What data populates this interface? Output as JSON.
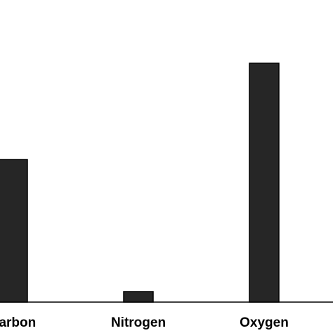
{
  "chart_data": {
    "type": "bar",
    "categories": [
      "Carbon",
      "Nitrogen",
      "Oxygen"
    ],
    "values": [
      203,
      15,
      340
    ],
    "color": "#262626"
  }
}
